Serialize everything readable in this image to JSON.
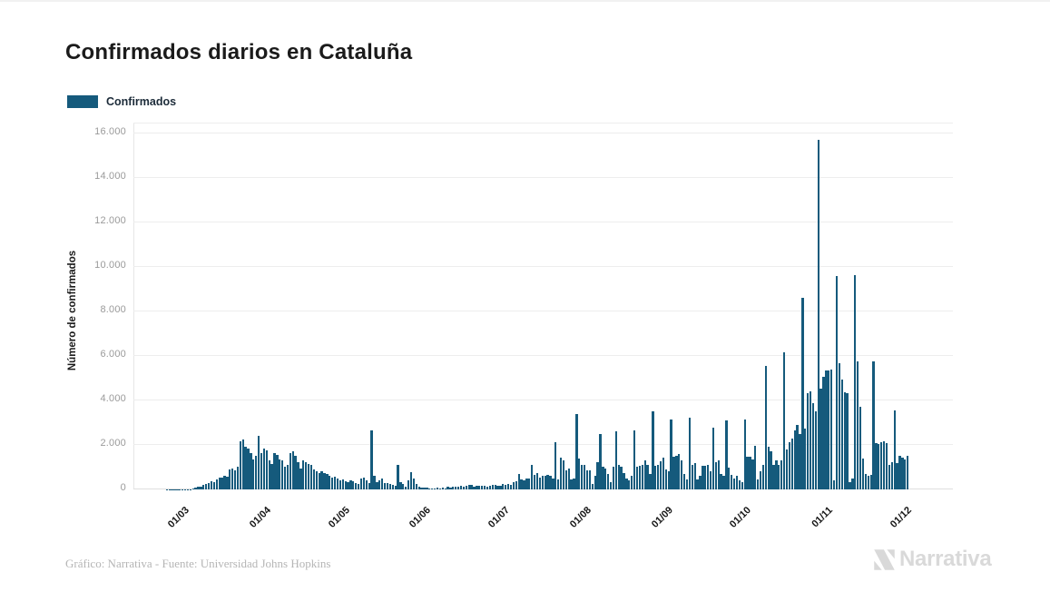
{
  "header": {
    "title": "Confirmados diarios en Cataluña"
  },
  "legend": {
    "label": "Confirmados"
  },
  "colors": {
    "bar": "#155A7C",
    "grid": "#ededed",
    "y_tick_text": "#9a9a9a",
    "x_tick_text": "#151515",
    "credit_text": "#b5b5b5",
    "brand_gray": "#d9d9d9"
  },
  "footer": {
    "credit": "Gráfico: Narrativa - Fuente: Universidad Johns Hopkins",
    "brand": "Narrativa"
  },
  "chart_data": {
    "type": "bar",
    "title": "Confirmados diarios en Cataluña",
    "series_name": "Confirmados",
    "xlabel": "",
    "ylabel": "Número de confirmados",
    "ylim": [
      0,
      16500
    ],
    "grid": true,
    "legend_position": "top-left",
    "yticks": [
      0,
      2000,
      4000,
      6000,
      8000,
      10000,
      12000,
      14000,
      16000
    ],
    "ytick_labels": [
      "0",
      "2.000",
      "4.000",
      "6.000",
      "8.000",
      "10.000",
      "12.000",
      "14.000",
      "16.000"
    ],
    "xticks": [
      {
        "date": "2020-03-01",
        "label": "01/03"
      },
      {
        "date": "2020-04-01",
        "label": "01/04"
      },
      {
        "date": "2020-05-01",
        "label": "01/05"
      },
      {
        "date": "2020-06-01",
        "label": "01/06"
      },
      {
        "date": "2020-07-01",
        "label": "01/07"
      },
      {
        "date": "2020-08-01",
        "label": "01/08"
      },
      {
        "date": "2020-09-01",
        "label": "01/09"
      },
      {
        "date": "2020-10-01",
        "label": "01/10"
      },
      {
        "date": "2020-11-01",
        "label": "01/11"
      },
      {
        "date": "2020-12-01",
        "label": "01/12"
      }
    ],
    "x_start": "2020-02-20",
    "x_end": "2020-11-30",
    "x_step_days": 1,
    "values": [
      0,
      0,
      1,
      1,
      2,
      3,
      4,
      6,
      9,
      12,
      15,
      20,
      35,
      80,
      110,
      135,
      190,
      245,
      300,
      380,
      340,
      450,
      545,
      520,
      610,
      570,
      885,
      950,
      845,
      1020,
      2175,
      2245,
      1905,
      1835,
      1630,
      1360,
      1495,
      2410,
      1630,
      1835,
      1770,
      1290,
      1160,
      1630,
      1565,
      1360,
      1290,
      1020,
      1090,
      1630,
      1700,
      1495,
      1225,
      950,
      1290,
      1225,
      1160,
      1090,
      885,
      815,
      750,
      815,
      750,
      680,
      610,
      545,
      570,
      475,
      410,
      435,
      380,
      340,
      408,
      380,
      272,
      245,
      476,
      544,
      408,
      300,
      2650,
      610,
      340,
      408,
      476,
      300,
      272,
      245,
      204,
      163,
      1115,
      340,
      231,
      135,
      408,
      775,
      476,
      258,
      110,
      95,
      80,
      68,
      55,
      60,
      45,
      70,
      50,
      82,
      60,
      109,
      82,
      136,
      109,
      136,
      163,
      140,
      163,
      218,
      190,
      136,
      150,
      177,
      163,
      177,
      136,
      150,
      204,
      190,
      163,
      177,
      231,
      204,
      230,
      190,
      340,
      380,
      710,
      435,
      395,
      505,
      505,
      1090,
      640,
      735,
      530,
      610,
      610,
      650,
      612,
      476,
      2120,
      435,
      1430,
      1320,
      845,
      940,
      435,
      500,
      3400,
      1390,
      1115,
      1090,
      845,
      845,
      230,
      612,
      1225,
      2500,
      1020,
      950,
      680,
      340,
      1000,
      2610,
      1090,
      1020,
      750,
      476,
      410,
      612,
      2650,
      1000,
      1050,
      1115,
      1320,
      1090,
      680,
      3505,
      1045,
      1100,
      1250,
      1415,
      910,
      816,
      3155,
      1455,
      1520,
      1590,
      1320,
      710,
      435,
      3220,
      1115,
      1180,
      435,
      600,
      1045,
      1045,
      1090,
      815,
      2770,
      1210,
      1320,
      680,
      610,
      3090,
      980,
      640,
      505,
      610,
      410,
      340,
      3130,
      1455,
      1455,
      1360,
      1955,
      435,
      800,
      1110,
      5530,
      1930,
      1725,
      1115,
      1320,
      1115,
      1320,
      6145,
      1795,
      2135,
      2300,
      2635,
      2880,
      2500,
      8615,
      2720,
      4310,
      4400,
      3860,
      3500,
      15685,
      4510,
      5055,
      5330,
      5330,
      5395,
      410,
      9580,
      5670,
      4920,
      4375,
      4310,
      310,
      500,
      9630,
      5760,
      3720,
      1385,
      700,
      600,
      650,
      5735,
      2100,
      2040,
      2135,
      2170,
      2100,
      1115,
      1225,
      3535,
      1180,
      1495,
      1415,
      1360,
      1495
    ]
  }
}
